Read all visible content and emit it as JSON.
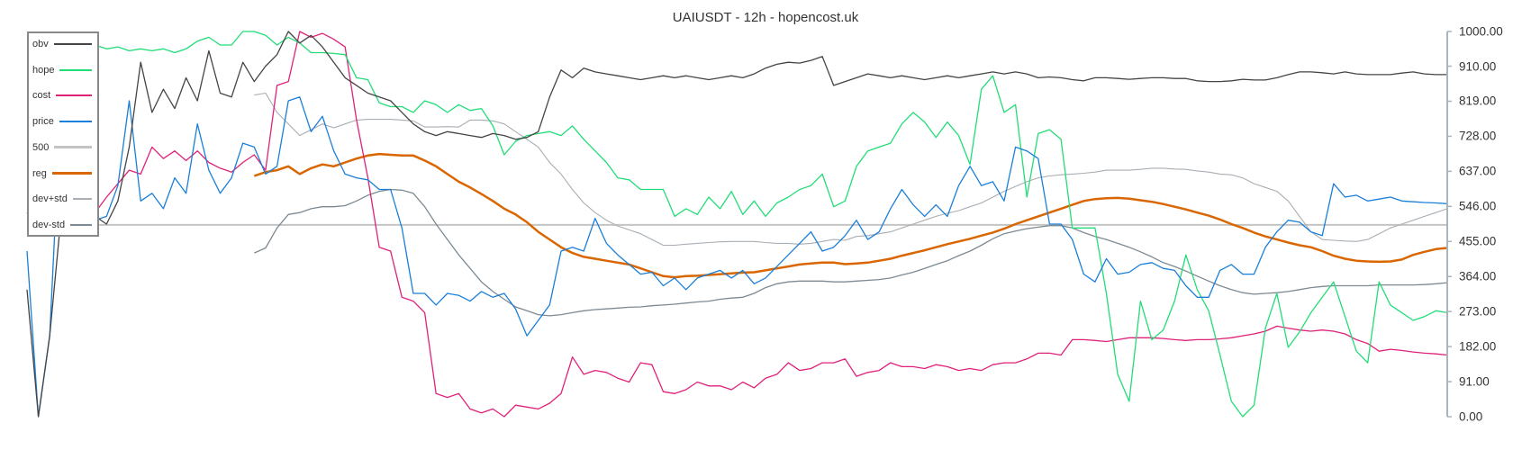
{
  "title": "UAIUSDT - 12h - hopencost.uk",
  "legend": {
    "items": [
      {
        "label": "obv",
        "color": "#444444",
        "width": 1.3
      },
      {
        "label": "hope",
        "color": "#22dd77",
        "width": 1.3
      },
      {
        "label": "cost",
        "color": "#e0217a",
        "width": 1.3
      },
      {
        "label": "price",
        "color": "#1a7fd8",
        "width": 1.3
      },
      {
        "label": "500",
        "color": "#c4c4c4",
        "width": 2
      },
      {
        "label": "reg",
        "color": "#d96600",
        "width": 2.5
      },
      {
        "label": "dev+std",
        "color": "#a8aeb3",
        "width": 1.1
      },
      {
        "label": "dev-std",
        "color": "#7d8a93",
        "width": 1.3
      }
    ]
  },
  "chart_data": {
    "type": "line",
    "title": "UAIUSDT - 12h - hopencost.uk",
    "xlabel": "",
    "ylabel": "",
    "ylim": [
      0,
      1000
    ],
    "y_ticks": [
      "1000.00",
      "910.00",
      "819.00",
      "728.00",
      "637.00",
      "546.00",
      "455.00",
      "364.00",
      "273.00",
      "182.00",
      "91.00",
      "0.00"
    ],
    "y_tick_values": [
      1000,
      910,
      819,
      728,
      637,
      546,
      455,
      364,
      273,
      182,
      91,
      0
    ],
    "axis_position": "right",
    "legend_position": "top-left",
    "grid": false,
    "n_points": 126,
    "series": [
      {
        "name": "obv",
        "values": [
          330,
          0,
          210,
          520,
          680,
          560,
          520,
          500,
          560,
          700,
          920,
          790,
          850,
          800,
          880,
          820,
          950,
          840,
          830,
          920,
          870,
          910,
          940,
          1000,
          970,
          990,
          960,
          920,
          880,
          860,
          840,
          830,
          820,
          790,
          760,
          740,
          730,
          740,
          735,
          730,
          725,
          735,
          730,
          720,
          725,
          740,
          830,
          900,
          880,
          905,
          895,
          890,
          885,
          880,
          875,
          880,
          885,
          880,
          885,
          880,
          875,
          880,
          885,
          880,
          890,
          905,
          915,
          920,
          918,
          925,
          935,
          860,
          870,
          880,
          890,
          885,
          880,
          885,
          880,
          875,
          880,
          885,
          880,
          885,
          890,
          895,
          890,
          895,
          890,
          880,
          882,
          880,
          875,
          872,
          880,
          880,
          878,
          876,
          878,
          880,
          880,
          878,
          878,
          872,
          870,
          870,
          872,
          876,
          874,
          874,
          880,
          888,
          895,
          895,
          893,
          890,
          895,
          890,
          888,
          888,
          888,
          892,
          895,
          890,
          888,
          888
        ]
      },
      {
        "name": "hope",
        "values": [
          990,
          975,
          960,
          955,
          957,
          960,
          965,
          955,
          960,
          950,
          955,
          950,
          955,
          945,
          955,
          975,
          985,
          965,
          965,
          1000,
          1000,
          990,
          965,
          985,
          970,
          945,
          945,
          943,
          940,
          880,
          875,
          815,
          805,
          805,
          790,
          820,
          810,
          790,
          810,
          795,
          800,
          755,
          680,
          715,
          730,
          735,
          740,
          730,
          755,
          720,
          690,
          660,
          620,
          615,
          590,
          590,
          590,
          520,
          540,
          525,
          570,
          540,
          585,
          525,
          560,
          520,
          555,
          570,
          590,
          600,
          630,
          545,
          560,
          650,
          690,
          700,
          710,
          760,
          790,
          765,
          725,
          765,
          730,
          655,
          850,
          885,
          790,
          810,
          570,
          735,
          745,
          720,
          490,
          490,
          490,
          320,
          110,
          40,
          300,
          200,
          225,
          300,
          420,
          330,
          275,
          160,
          40,
          0,
          30,
          230,
          320,
          180,
          220,
          270,
          310,
          350,
          260,
          170,
          140,
          350,
          290,
          270,
          250,
          260,
          275,
          270
        ]
      },
      {
        "name": "cost",
        "values": [
          530,
          480,
          500,
          530,
          510,
          470,
          530,
          570,
          605,
          640,
          630,
          700,
          670,
          690,
          665,
          690,
          660,
          645,
          635,
          660,
          680,
          640,
          860,
          870,
          1000,
          985,
          995,
          980,
          960,
          770,
          620,
          440,
          430,
          310,
          300,
          270,
          60,
          50,
          60,
          20,
          10,
          20,
          0,
          30,
          25,
          20,
          35,
          60,
          155,
          110,
          120,
          115,
          100,
          90,
          140,
          135,
          65,
          60,
          70,
          90,
          80,
          80,
          70,
          90,
          75,
          100,
          110,
          140,
          120,
          125,
          140,
          140,
          150,
          105,
          115,
          120,
          140,
          130,
          130,
          125,
          135,
          130,
          120,
          125,
          120,
          135,
          140,
          140,
          150,
          165,
          165,
          160,
          200,
          200,
          198,
          195,
          200,
          205,
          205,
          205,
          203,
          200,
          198,
          200,
          200,
          202,
          205,
          210,
          215,
          222,
          235,
          230,
          225,
          222,
          225,
          222,
          215,
          200,
          190,
          170,
          175,
          172,
          168,
          165,
          163,
          160
        ]
      },
      {
        "name": "price",
        "values": [
          430,
          0,
          210,
          820,
          620,
          560,
          510,
          520,
          600,
          820,
          560,
          580,
          540,
          620,
          580,
          760,
          640,
          580,
          620,
          710,
          700,
          630,
          650,
          820,
          830,
          740,
          780,
          690,
          630,
          620,
          615,
          590,
          590,
          490,
          320,
          320,
          290,
          320,
          315,
          300,
          325,
          310,
          320,
          280,
          210,
          250,
          290,
          430,
          440,
          430,
          515,
          450,
          420,
          395,
          370,
          375,
          340,
          360,
          330,
          360,
          370,
          380,
          360,
          380,
          345,
          360,
          390,
          420,
          450,
          480,
          430,
          440,
          470,
          510,
          460,
          480,
          540,
          590,
          550,
          520,
          550,
          520,
          600,
          650,
          600,
          610,
          560,
          700,
          690,
          670,
          500,
          500,
          460,
          370,
          350,
          410,
          370,
          375,
          395,
          400,
          385,
          380,
          340,
          310,
          310,
          380,
          395,
          370,
          370,
          440,
          480,
          510,
          505,
          480,
          470,
          605,
          570,
          575,
          560,
          565,
          570,
          560,
          558,
          556,
          555,
          553
        ]
      },
      {
        "name": "500",
        "values": [
          498,
          498,
          498,
          498,
          498,
          498,
          498,
          498,
          498,
          498,
          498,
          498,
          498,
          498,
          498,
          498,
          498,
          498,
          498,
          498,
          498,
          498,
          498,
          498,
          498,
          498,
          498,
          498,
          498,
          498,
          498,
          498,
          498,
          498,
          498,
          498,
          498,
          498,
          498,
          498,
          498,
          498,
          498,
          498,
          498,
          498,
          498,
          498,
          498,
          498,
          498,
          498,
          498,
          498,
          498,
          498,
          498,
          498,
          498,
          498,
          498,
          498,
          498,
          498,
          498,
          498,
          498,
          498,
          498,
          498,
          498,
          498,
          498,
          498,
          498,
          498,
          498,
          498,
          498,
          498,
          498,
          498,
          498,
          498,
          498,
          498,
          498,
          498,
          498,
          498,
          498,
          498,
          498,
          498,
          498,
          498,
          498,
          498,
          498,
          498,
          498,
          498,
          498,
          498,
          498,
          498,
          498,
          498,
          498,
          498,
          498,
          498,
          498,
          498,
          498,
          498,
          498,
          498,
          498,
          498,
          498,
          498,
          498,
          498,
          498,
          498
        ]
      },
      {
        "name": "reg",
        "values": [
          null,
          null,
          null,
          null,
          null,
          null,
          null,
          null,
          null,
          null,
          null,
          null,
          null,
          null,
          null,
          null,
          null,
          null,
          null,
          null,
          625,
          635,
          640,
          650,
          630,
          645,
          655,
          650,
          660,
          670,
          678,
          682,
          680,
          678,
          678,
          665,
          650,
          630,
          610,
          595,
          578,
          560,
          540,
          525,
          505,
          480,
          460,
          440,
          425,
          415,
          410,
          405,
          400,
          395,
          385,
          375,
          365,
          362,
          365,
          366,
          368,
          370,
          372,
          374,
          375,
          380,
          385,
          390,
          395,
          398,
          400,
          400,
          396,
          398,
          400,
          405,
          410,
          418,
          425,
          432,
          440,
          448,
          455,
          462,
          470,
          478,
          488,
          500,
          510,
          520,
          530,
          540,
          550,
          560,
          565,
          567,
          568,
          566,
          562,
          558,
          552,
          545,
          538,
          530,
          522,
          512,
          500,
          490,
          478,
          468,
          460,
          452,
          445,
          440,
          430,
          418,
          410,
          405,
          403,
          402,
          403,
          408,
          420,
          428,
          435,
          438
        ]
      },
      {
        "name": "dev+std",
        "values": [
          null,
          null,
          null,
          null,
          null,
          null,
          null,
          null,
          null,
          null,
          null,
          null,
          null,
          null,
          null,
          null,
          null,
          null,
          null,
          null,
          835,
          840,
          790,
          760,
          730,
          745,
          760,
          750,
          760,
          770,
          772,
          772,
          772,
          770,
          768,
          752,
          752,
          753,
          752,
          770,
          770,
          768,
          760,
          740,
          720,
          700,
          660,
          630,
          590,
          555,
          530,
          510,
          495,
          485,
          475,
          460,
          445,
          445,
          448,
          450,
          452,
          454,
          455,
          455,
          455,
          452,
          450,
          450,
          448,
          450,
          455,
          460,
          458,
          468,
          470,
          475,
          480,
          490,
          500,
          510,
          520,
          528,
          535,
          545,
          555,
          570,
          585,
          598,
          610,
          620,
          625,
          628,
          630,
          632,
          635,
          640,
          640,
          640,
          642,
          645,
          645,
          643,
          642,
          638,
          635,
          630,
          628,
          620,
          605,
          595,
          585,
          560,
          520,
          480,
          460,
          458,
          456,
          455,
          460,
          475,
          490,
          500,
          510,
          520,
          530,
          540
        ]
      },
      {
        "name": "dev-std",
        "values": [
          null,
          null,
          null,
          null,
          null,
          null,
          null,
          null,
          null,
          null,
          null,
          null,
          null,
          null,
          null,
          null,
          null,
          null,
          null,
          null,
          425,
          438,
          490,
          525,
          530,
          540,
          545,
          545,
          548,
          560,
          575,
          585,
          590,
          588,
          580,
          545,
          500,
          460,
          420,
          385,
          350,
          325,
          305,
          285,
          275,
          265,
          262,
          265,
          270,
          275,
          278,
          280,
          282,
          284,
          285,
          288,
          290,
          292,
          295,
          298,
          300,
          305,
          308,
          310,
          320,
          335,
          345,
          350,
          352,
          352,
          352,
          350,
          350,
          352,
          354,
          356,
          360,
          368,
          375,
          385,
          395,
          405,
          418,
          430,
          445,
          462,
          475,
          482,
          488,
          492,
          496,
          496,
          490,
          478,
          468,
          460,
          450,
          440,
          428,
          415,
          400,
          390,
          378,
          365,
          352,
          340,
          330,
          322,
          318,
          320,
          322,
          325,
          330,
          335,
          338,
          340,
          340,
          340,
          340,
          342,
          342,
          342,
          342,
          343,
          345,
          348
        ]
      }
    ]
  },
  "axis": {
    "ticks": [
      "1000.00",
      "910.00",
      "819.00",
      "728.00",
      "637.00",
      "546.00",
      "455.00",
      "364.00",
      "273.00",
      "182.00",
      "91.00",
      "0.00"
    ]
  }
}
